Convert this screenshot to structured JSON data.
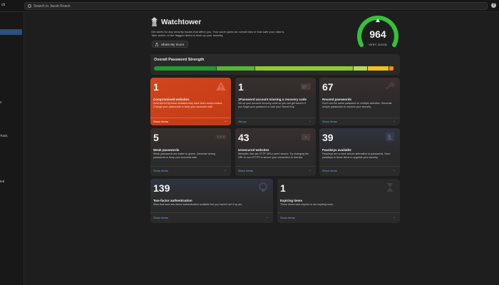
{
  "topbar": {
    "account_fragment": "ch",
    "search_placeholder": "Search in Jacob Roach",
    "help_icon": "?"
  },
  "sidebar": {
    "fragments": [
      "n",
      "Tools",
      "ted"
    ]
  },
  "header": {
    "title": "Watchtower",
    "description": "Get alerts for any security issues that affect you. Your score gives an overall idea of how safe your data is. Take action on the flagged items to level up your security.",
    "share_label": "Share My Score"
  },
  "score": {
    "value": "964",
    "rating": "VERY GOOD"
  },
  "strength": {
    "label": "Overall Password Strength",
    "segments": [
      {
        "color": "#1f9a2a",
        "fraction": 0.26
      },
      {
        "color": "#54b830",
        "fraction": 0.16
      },
      {
        "color": "#8ccd2e",
        "fraction": 0.41
      },
      {
        "color": "#b7d95a",
        "fraction": 0.06
      },
      {
        "color": "#f2c318",
        "fraction": 0.09
      },
      {
        "color": "#f08a1a",
        "fraction": 0.02
      }
    ]
  },
  "cards": [
    {
      "count": "1",
      "title": "Compromised websites",
      "description": "Data stored by these websites may have been compromised. Change your passwords to keep your accounts safe.",
      "link": "Show Items",
      "icon": "alert-triangle-icon"
    },
    {
      "count": "1",
      "title": "1Password account missing a recovery code",
      "description": "Set up your account recovery code so you can get back in if you forget your password or lose your Secret Key.",
      "link": "Set up",
      "icon": "key-card-icon"
    },
    {
      "count": "67",
      "title": "Reused passwords",
      "description": "Don't use the same password on multiple websites. Generate unique passwords to improve your security.",
      "link": "Show Items",
      "icon": "key-icon"
    },
    {
      "count": "5",
      "title": "Weak passwords",
      "description": "Weak passwords are easier to guess. Generate strong passwords to keep your accounts safe.",
      "link": "Show Items",
      "icon": "password-dots-icon"
    },
    {
      "count": "43",
      "title": "Unsecured websites",
      "description": "Websites that use HTTP URLs aren't secure. Try changing the URL to use HTTPS to secure your connection to that site.",
      "link": "Show Items",
      "icon": "unlock-icon"
    },
    {
      "count": "39",
      "title": "Passkeys available",
      "description": "Passkeys are a more secure alternative to passwords. Save passkeys to these items to upgrade your security.",
      "link": "Show Items",
      "icon": "passkey-icon"
    },
    {
      "count": "139",
      "title": "Two-factor authentication",
      "description": "Sites that have two-factor authentication available but you haven't set it up yet.",
      "link": "Show Items",
      "icon": "two-factor-icon"
    },
    {
      "count": "1",
      "title": "Expiring items",
      "description": "These items have expired or are expiring soon.",
      "link": "Show Items",
      "icon": "hourglass-icon"
    }
  ]
}
